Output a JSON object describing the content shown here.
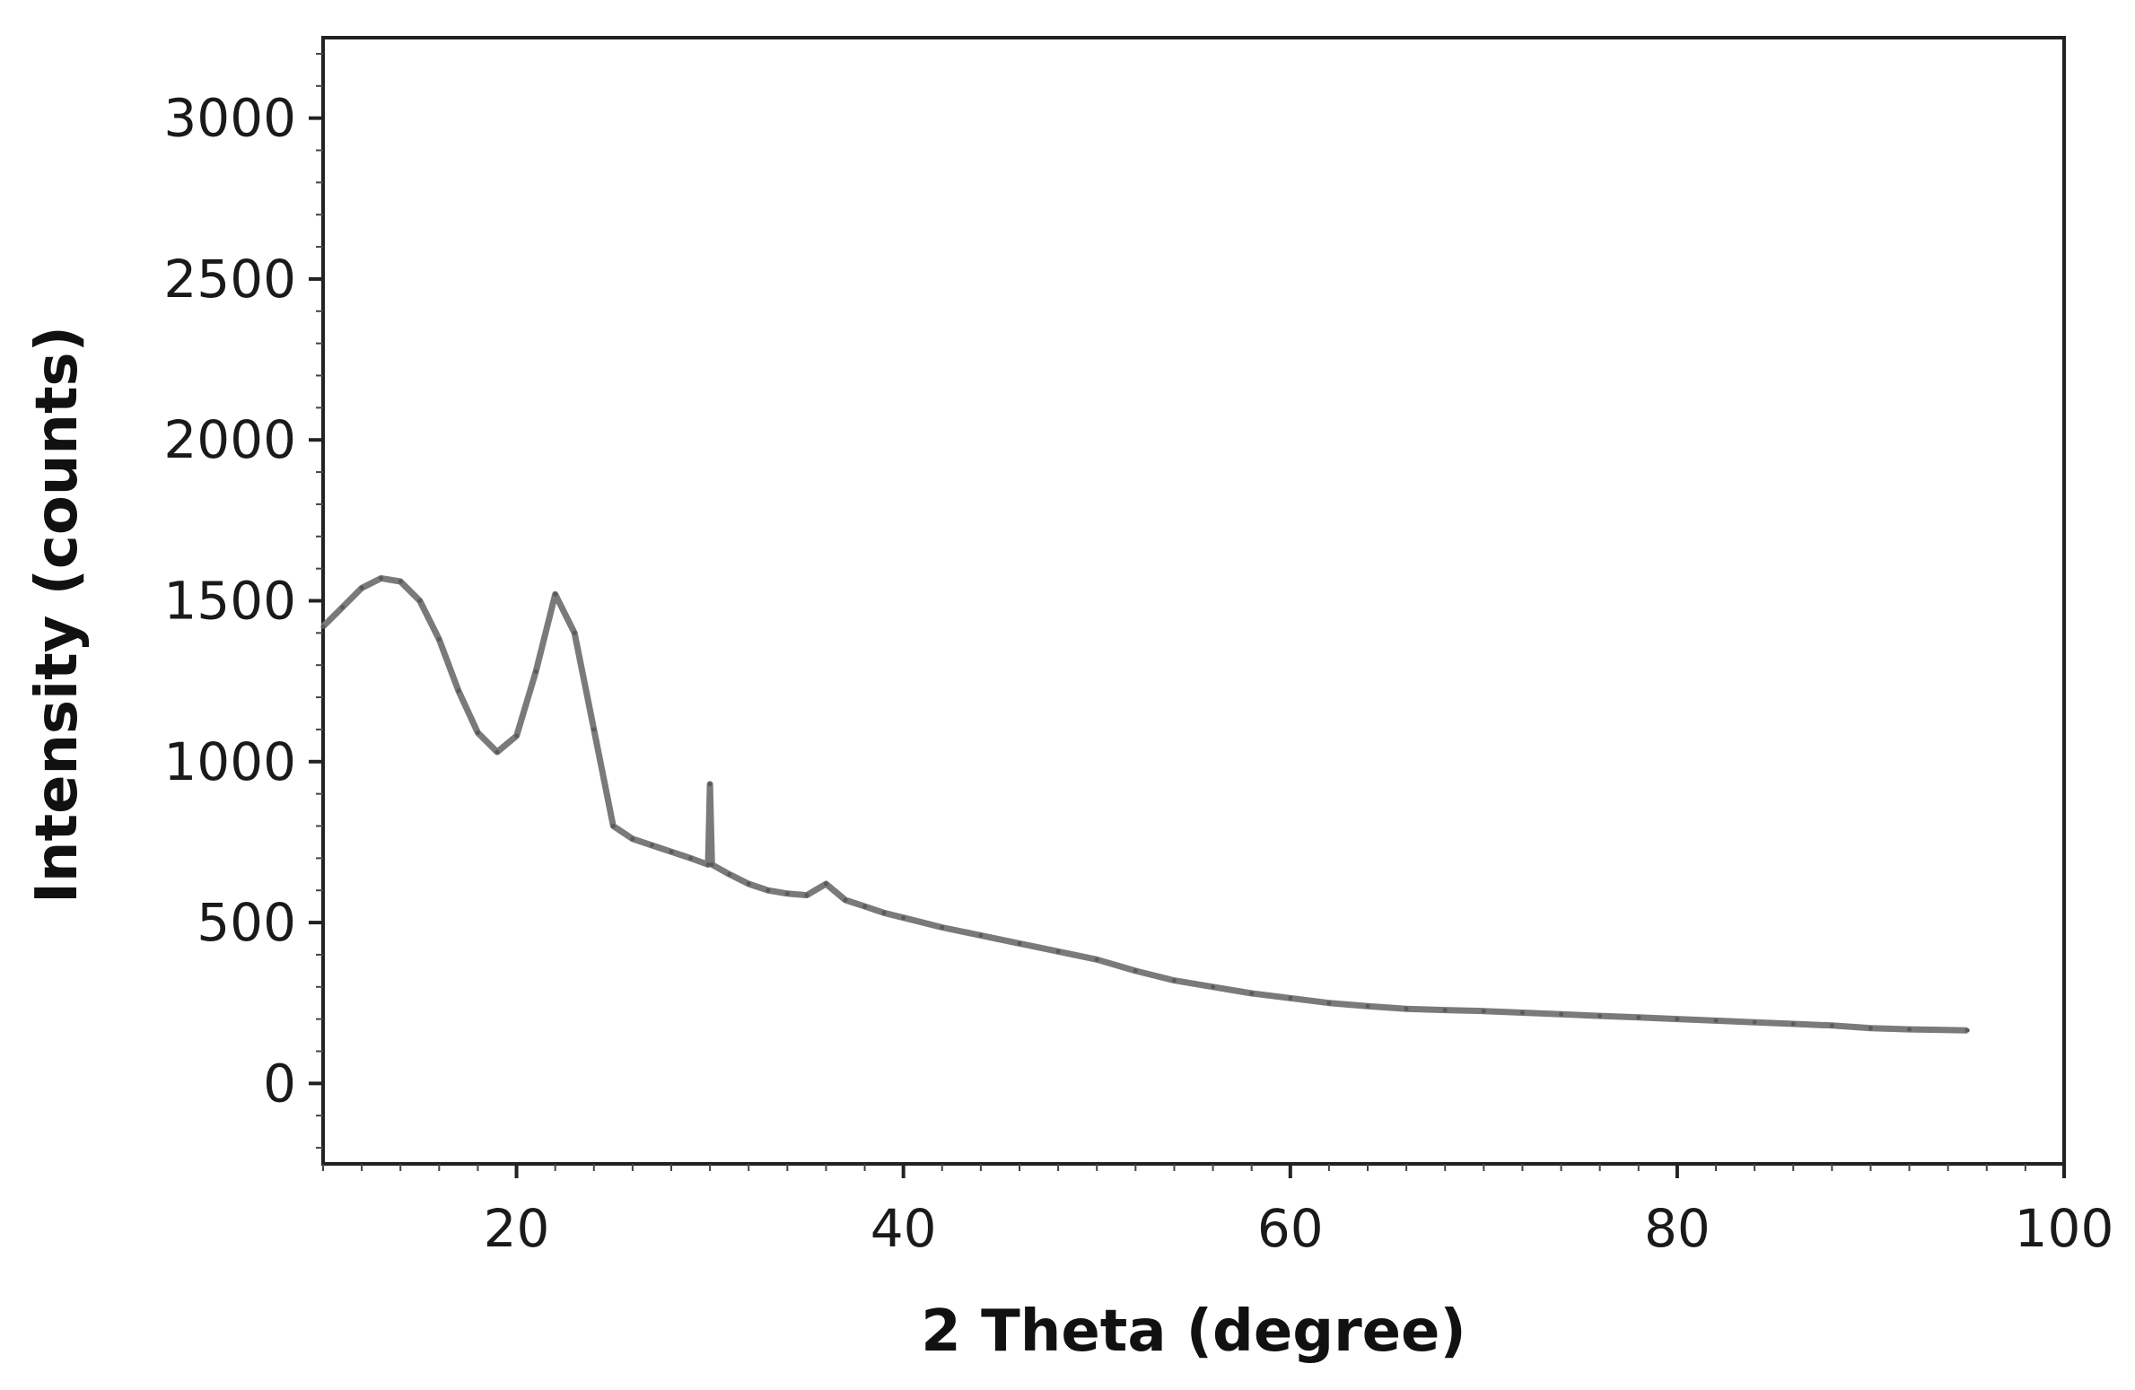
{
  "chart_data": {
    "type": "line",
    "title": "",
    "xlabel": "2 Theta (degree)",
    "ylabel": "Intensity (counts)",
    "xlim": [
      10,
      100
    ],
    "ylim": [
      -250,
      3250
    ],
    "x_ticks": [
      20,
      40,
      60,
      80,
      100
    ],
    "y_ticks": [
      0,
      500,
      1000,
      1500,
      2000,
      2500,
      3000
    ],
    "x_tick_labels": [
      "20",
      "40",
      "60",
      "80",
      "100"
    ],
    "y_tick_labels": [
      "0",
      "500",
      "1000",
      "1500",
      "2000",
      "2500",
      "3000"
    ],
    "grid": false,
    "legend": "none",
    "line_color": "#7a7a7a",
    "series": [
      {
        "x": [
          10,
          11,
          12,
          13,
          14,
          15,
          16,
          17,
          18,
          19,
          20,
          21,
          22,
          23,
          24,
          25,
          26,
          27,
          28,
          29,
          29.9,
          30,
          30.1,
          31,
          32,
          33,
          34,
          35,
          36,
          37,
          38,
          39,
          40,
          42,
          44,
          46,
          48,
          50,
          52,
          54,
          56,
          58,
          60,
          62,
          64,
          66,
          68,
          70,
          72,
          74,
          76,
          78,
          80,
          82,
          84,
          86,
          88,
          90,
          92,
          95
        ],
        "y": [
          1420,
          1480,
          1540,
          1570,
          1560,
          1500,
          1380,
          1220,
          1090,
          1030,
          1080,
          1280,
          1520,
          1400,
          1100,
          800,
          760,
          740,
          720,
          700,
          680,
          930,
          680,
          650,
          620,
          600,
          590,
          585,
          620,
          570,
          550,
          530,
          515,
          485,
          460,
          435,
          410,
          385,
          350,
          320,
          300,
          280,
          265,
          250,
          240,
          232,
          228,
          225,
          220,
          215,
          210,
          205,
          200,
          195,
          190,
          185,
          180,
          172,
          168,
          165
        ]
      }
    ]
  }
}
